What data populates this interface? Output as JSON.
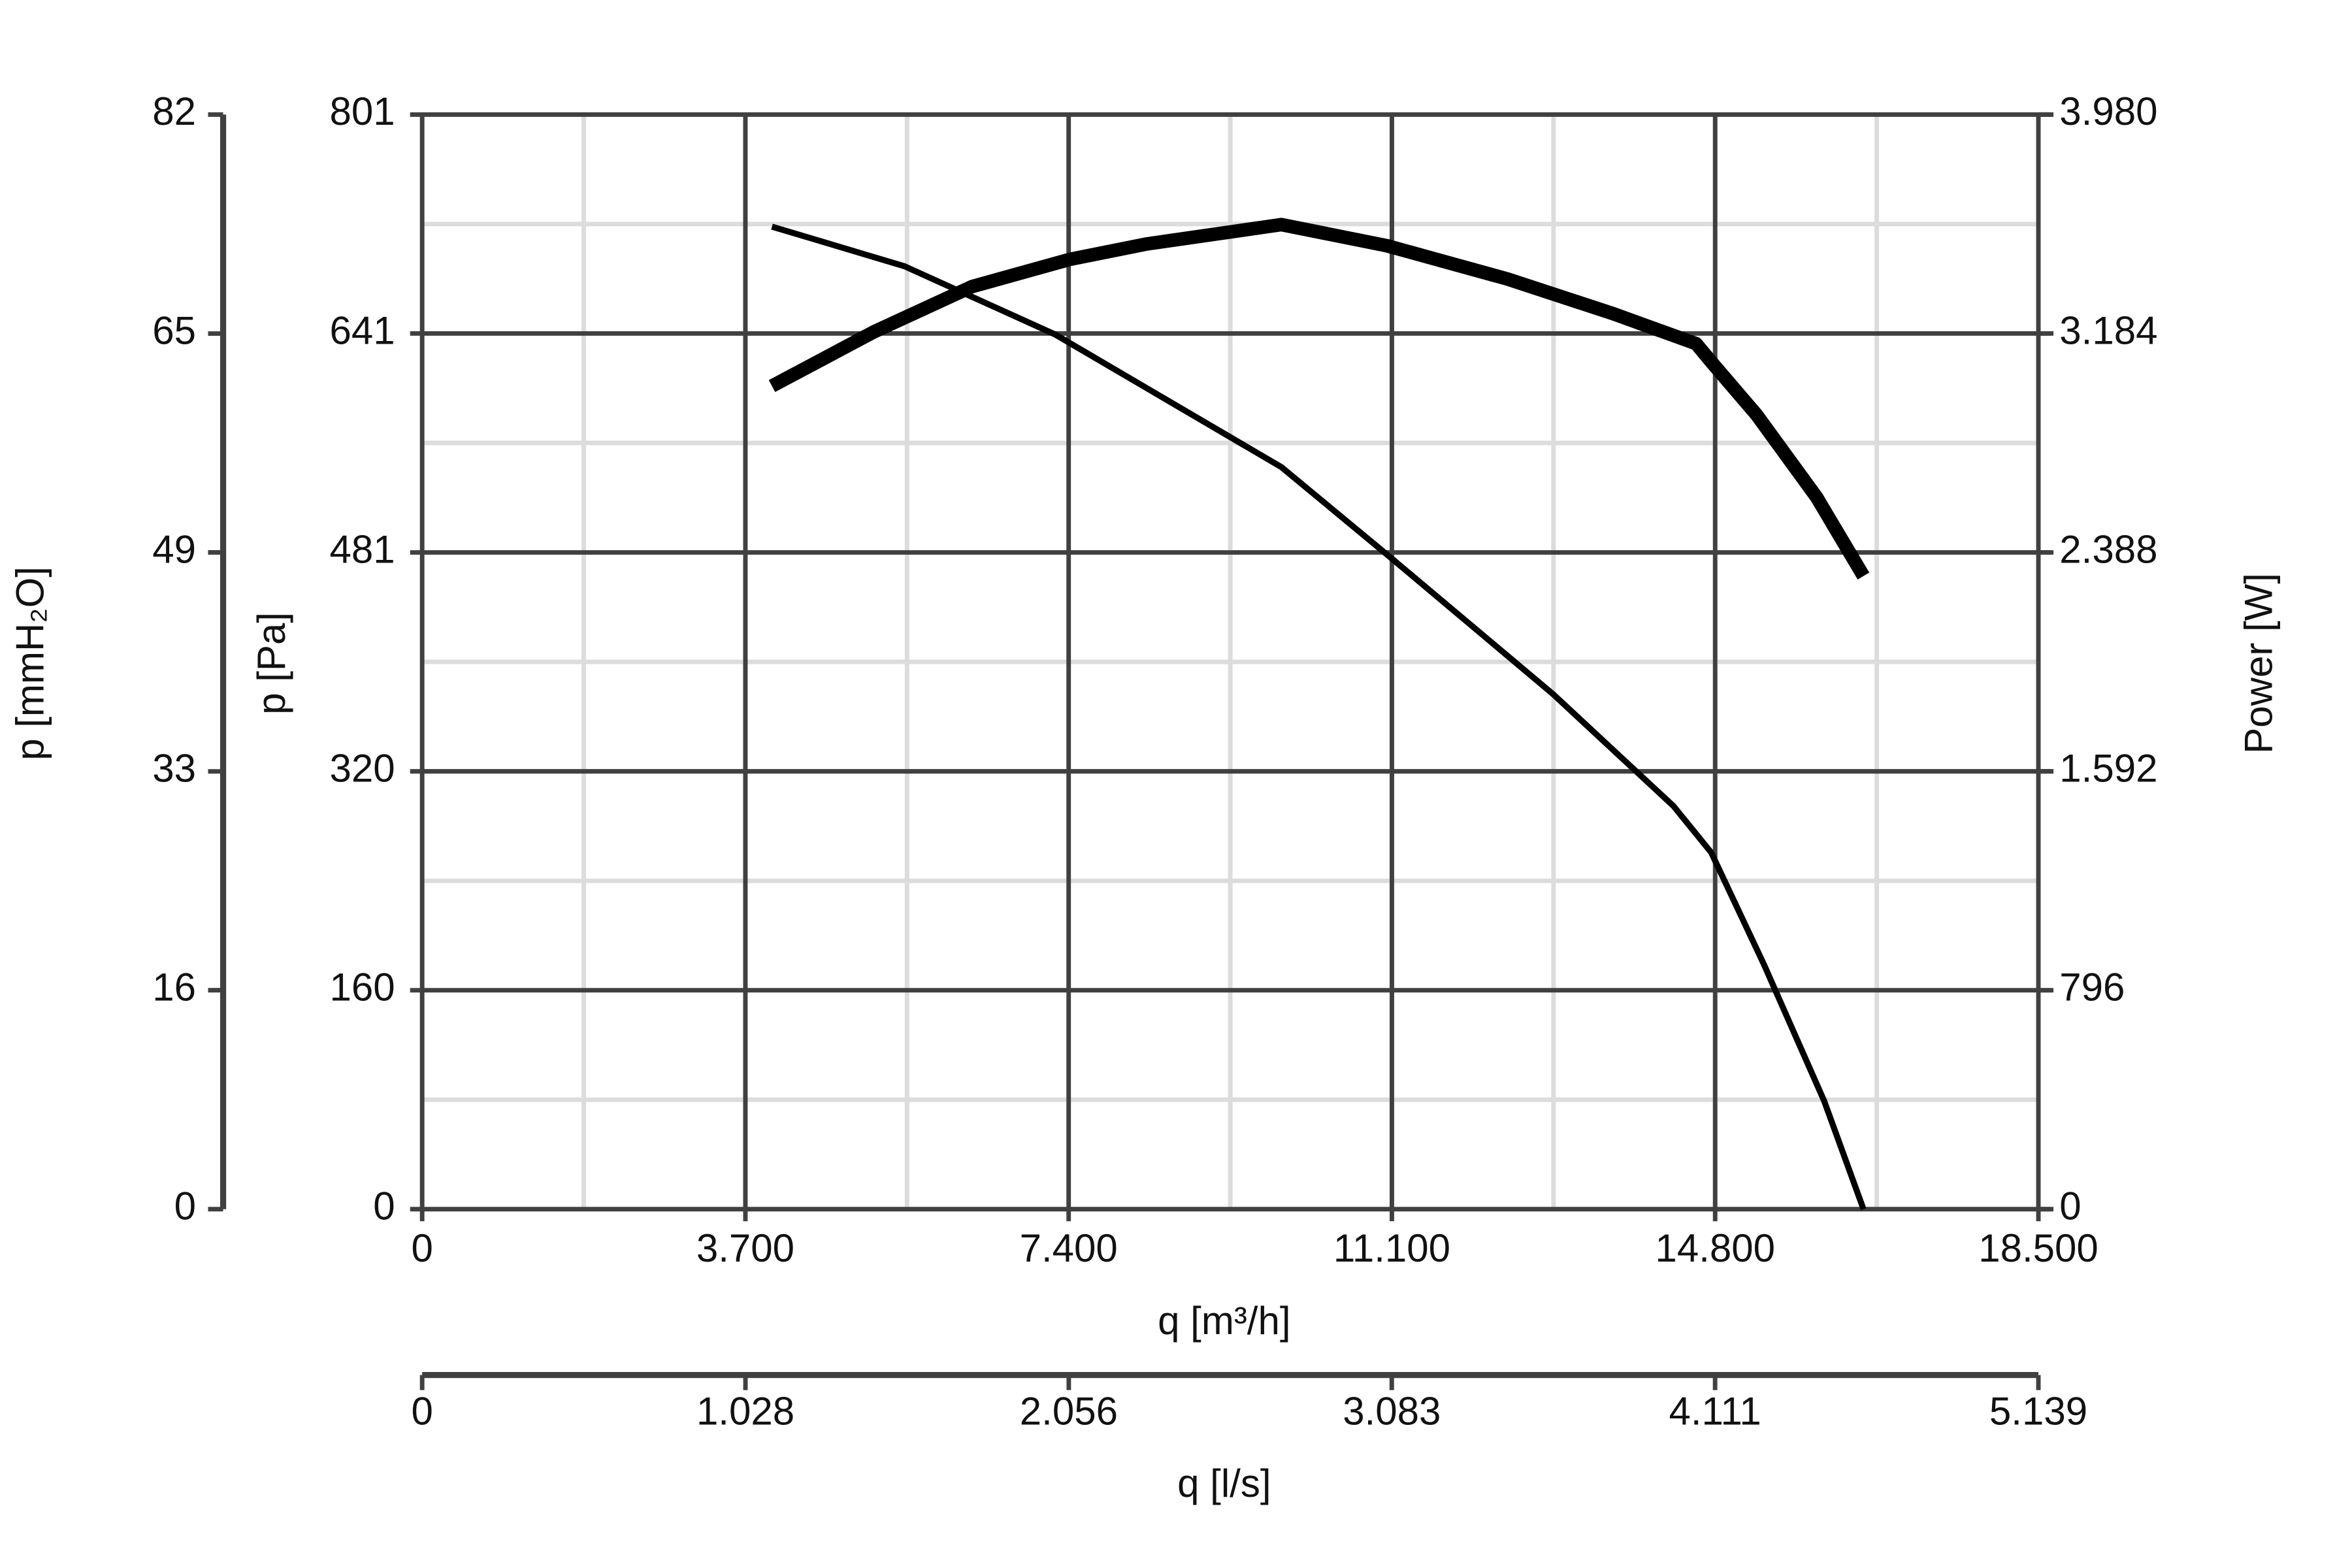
{
  "chart_data": {
    "type": "line",
    "x_label": "q [m³/h]",
    "xlim": [
      0,
      18500
    ],
    "xticks": [
      0,
      {
        "value": 3700,
        "label": "3.700"
      },
      {
        "value": 7400,
        "label": "7.400"
      },
      {
        "value": 11100,
        "label": "11.100"
      },
      {
        "value": 14800,
        "label": "14.800"
      },
      {
        "value": 18500,
        "label": "18.500"
      }
    ],
    "x2_label": "q [l/s]",
    "x2lim": [
      0,
      5.139
    ],
    "x2ticks": [
      0,
      1.028,
      2.056,
      3.083,
      4.111,
      5.139
    ],
    "y_label": "p [Pa]",
    "ylim": [
      0,
      801
    ],
    "yticks": [
      0,
      {
        "value": 160.2,
        "label": "160"
      },
      {
        "value": 320.4,
        "label": "320"
      },
      {
        "value": 480.6,
        "label": "481"
      },
      {
        "value": 640.8,
        "label": "641"
      },
      801
    ],
    "y3_label": "p [mmH₂O]",
    "y3lim": [
      0,
      81.68
    ],
    "y3ticks": [
      0,
      {
        "value": 16.34,
        "label": "16"
      },
      {
        "value": 32.67,
        "label": "33"
      },
      {
        "value": 49.01,
        "label": "49"
      },
      {
        "value": 65.34,
        "label": "65"
      },
      {
        "value": 81.68,
        "label": "82"
      }
    ],
    "y2_label": "Power [W]",
    "y2lim": [
      0,
      3980
    ],
    "y2ticks": [
      0,
      {
        "value": 796,
        "label": "796"
      },
      {
        "value": 1592,
        "label": "1.592"
      },
      {
        "value": 2388,
        "label": "2.388"
      },
      {
        "value": 3184,
        "label": "3.184"
      },
      {
        "value": 3980,
        "label": "3.980"
      }
    ],
    "grid": true,
    "minor_grid": true,
    "series": [
      {
        "color": "#000000",
        "width": 4,
        "x": [
          4004,
          5522,
          7248,
          9836,
          11045,
          12943,
          14323,
          14755,
          15359,
          16049,
          16498
        ],
        "values": [
          719,
          690,
          640,
          543,
          479,
          377,
          295,
          261,
          179,
          79,
          0
        ]
      },
      {
        "color": "#000000",
        "width": 9,
        "axis": "y2",
        "x": [
          4004,
          5177,
          6298,
          7420,
          8283,
          9836,
          11045,
          12425,
          13633,
          14582,
          14755,
          15273,
          15963,
          16498
        ],
        "values": [
          2993,
          3191,
          3355,
          3454,
          3509,
          3580,
          3503,
          3382,
          3256,
          3147,
          3081,
          2889,
          2588,
          2302
        ]
      }
    ]
  }
}
